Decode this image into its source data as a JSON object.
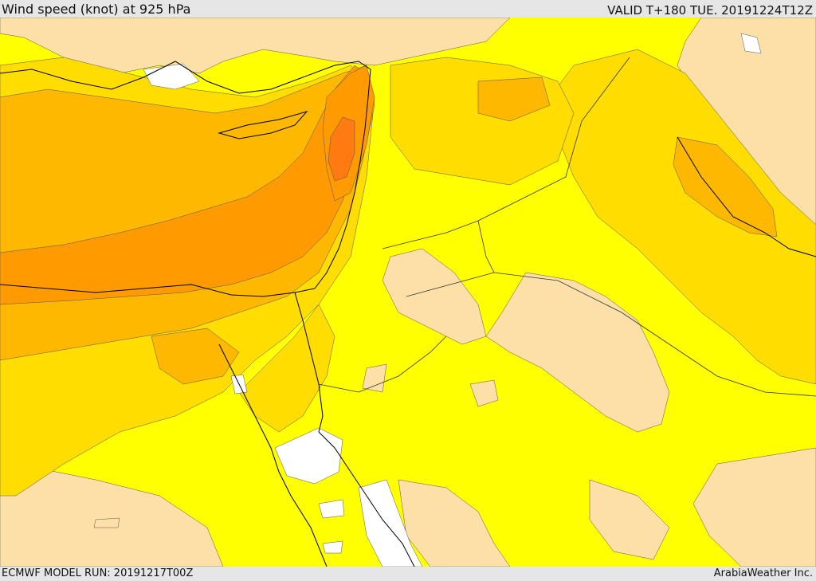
{
  "header": {
    "title": "Wind speed (knot) at 925 hPa",
    "valid": "VALID T+180 TUE. 20191224T12Z"
  },
  "footer": {
    "model_run": "ECMWF MODEL RUN: 20191217T00Z",
    "credit": "ArabiaWeather Inc."
  },
  "colors": {
    "band_calm": "#ffffff",
    "band_light": "#fde0a8",
    "band_moderate": "#ffff00",
    "band_fresh": "#ffdd00",
    "band_strong": "#ffb800",
    "band_very_strong": "#ff9a00",
    "band_gale": "#ff7a10",
    "coastline": "#000000"
  }
}
